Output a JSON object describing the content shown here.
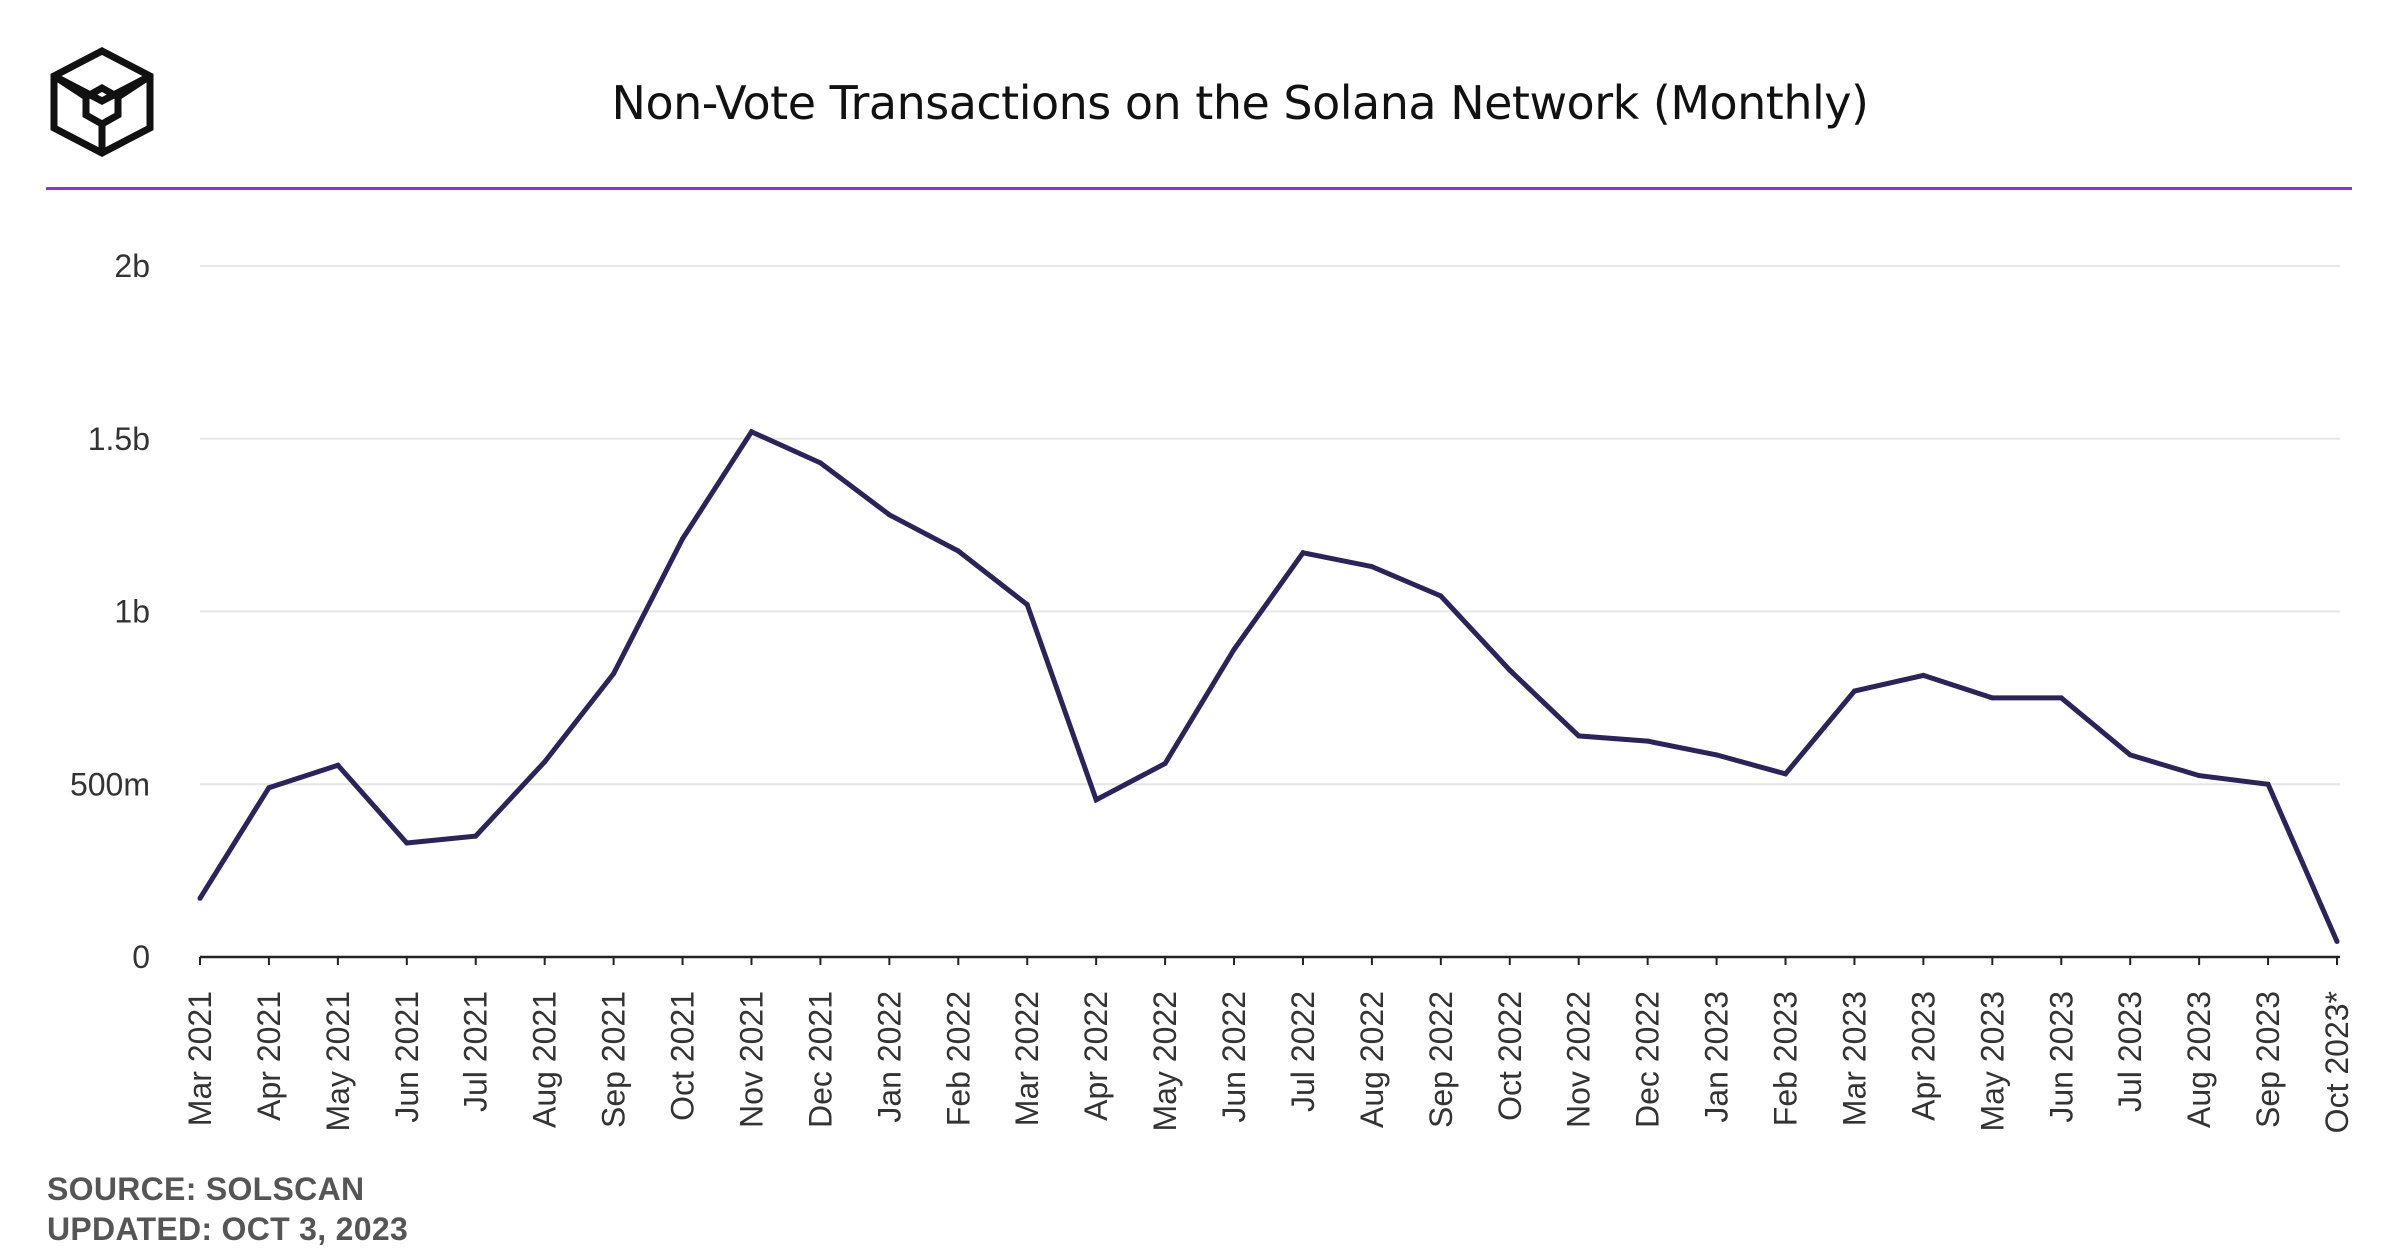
{
  "header": {
    "title": "Non-Vote Transactions on the Solana Network (Monthly)",
    "logo_icon": "cube-logo-icon"
  },
  "footer": {
    "source": "SOURCE: SOLSCAN",
    "updated": "UPDATED: OCT 3, 2023"
  },
  "colors": {
    "line": "#2b2458",
    "divider": "#9b2fd6",
    "grid": "#e6e6e6",
    "axis": "#222222",
    "text": "#333333"
  },
  "chart_data": {
    "type": "line",
    "title": "Non-Vote Transactions on the Solana Network (Monthly)",
    "xlabel": "",
    "ylabel": "",
    "ylim": [
      0,
      2000000000
    ],
    "grid": true,
    "legend": "none",
    "y_ticks": [
      {
        "value": 0,
        "label": "0"
      },
      {
        "value": 500000000,
        "label": "500m"
      },
      {
        "value": 1000000000,
        "label": "1b"
      },
      {
        "value": 1500000000,
        "label": "1.5b"
      },
      {
        "value": 2000000000,
        "label": "2b"
      }
    ],
    "categories": [
      "Mar 2021",
      "Apr 2021",
      "May 2021",
      "Jun 2021",
      "Jul 2021",
      "Aug 2021",
      "Sep 2021",
      "Oct 2021",
      "Nov 2021",
      "Dec 2021",
      "Jan 2022",
      "Feb 2022",
      "Mar 2022",
      "Apr 2022",
      "May 2022",
      "Jun 2022",
      "Jul 2022",
      "Aug 2022",
      "Sep 2022",
      "Oct 2022",
      "Nov 2022",
      "Dec 2022",
      "Jan 2023",
      "Feb 2023",
      "Mar 2023",
      "Apr 2023",
      "May 2023",
      "Jun 2023",
      "Jul 2023",
      "Aug 2023",
      "Sep 2023",
      "Oct 2023*"
    ],
    "series": [
      {
        "values": [
          170000000,
          490000000,
          555000000,
          330000000,
          350000000,
          565000000,
          820000000,
          1210000000,
          1520000000,
          1430000000,
          1280000000,
          1175000000,
          1020000000,
          455000000,
          560000000,
          890000000,
          1170000000,
          1130000000,
          1045000000,
          830000000,
          640000000,
          625000000,
          585000000,
          530000000,
          770000000,
          815000000,
          750000000,
          750000000,
          585000000,
          525000000,
          500000000,
          45000000
        ]
      }
    ]
  }
}
